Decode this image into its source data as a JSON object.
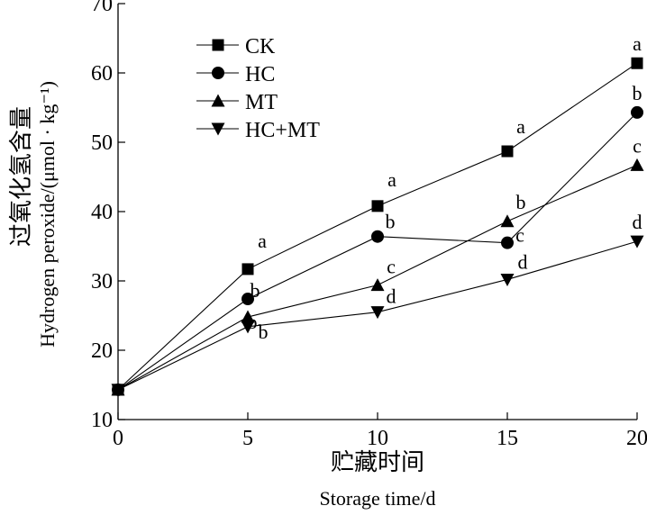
{
  "chart_data": {
    "type": "line",
    "xlabel_cn": "贮藏时间",
    "xlabel": "Storage time/d",
    "ylabel_cn": "过氧化氢含量",
    "ylabel": "Hydrogen peroxide/(μmol · kg⁻¹)",
    "xlim": [
      0,
      20
    ],
    "ylim": [
      10,
      70
    ],
    "xticks": [
      0,
      5,
      10,
      15,
      20
    ],
    "yticks": [
      10,
      20,
      30,
      40,
      50,
      60,
      70
    ],
    "x": [
      0,
      5,
      10,
      15,
      20
    ],
    "grid": false,
    "legend_position": "top-left",
    "series": [
      {
        "name": "CK",
        "marker": "square",
        "values": [
          14.3,
          31.7,
          40.8,
          48.7,
          61.4
        ],
        "labels": [
          "",
          "a",
          "a",
          "a",
          "a"
        ]
      },
      {
        "name": "HC",
        "marker": "circle",
        "values": [
          14.3,
          27.4,
          36.4,
          35.5,
          54.3
        ],
        "labels": [
          "",
          "b",
          "b",
          "c",
          "b"
        ]
      },
      {
        "name": "MT",
        "marker": "triangle-up",
        "values": [
          14.3,
          24.8,
          29.4,
          38.6,
          46.7
        ],
        "labels": [
          "",
          "b",
          "c",
          "b",
          "c"
        ]
      },
      {
        "name": "HC+MT",
        "marker": "triangle-down",
        "values": [
          14.3,
          23.4,
          25.5,
          30.2,
          35.7
        ],
        "labels": [
          "",
          "b",
          "d",
          "d",
          "d"
        ]
      }
    ]
  }
}
